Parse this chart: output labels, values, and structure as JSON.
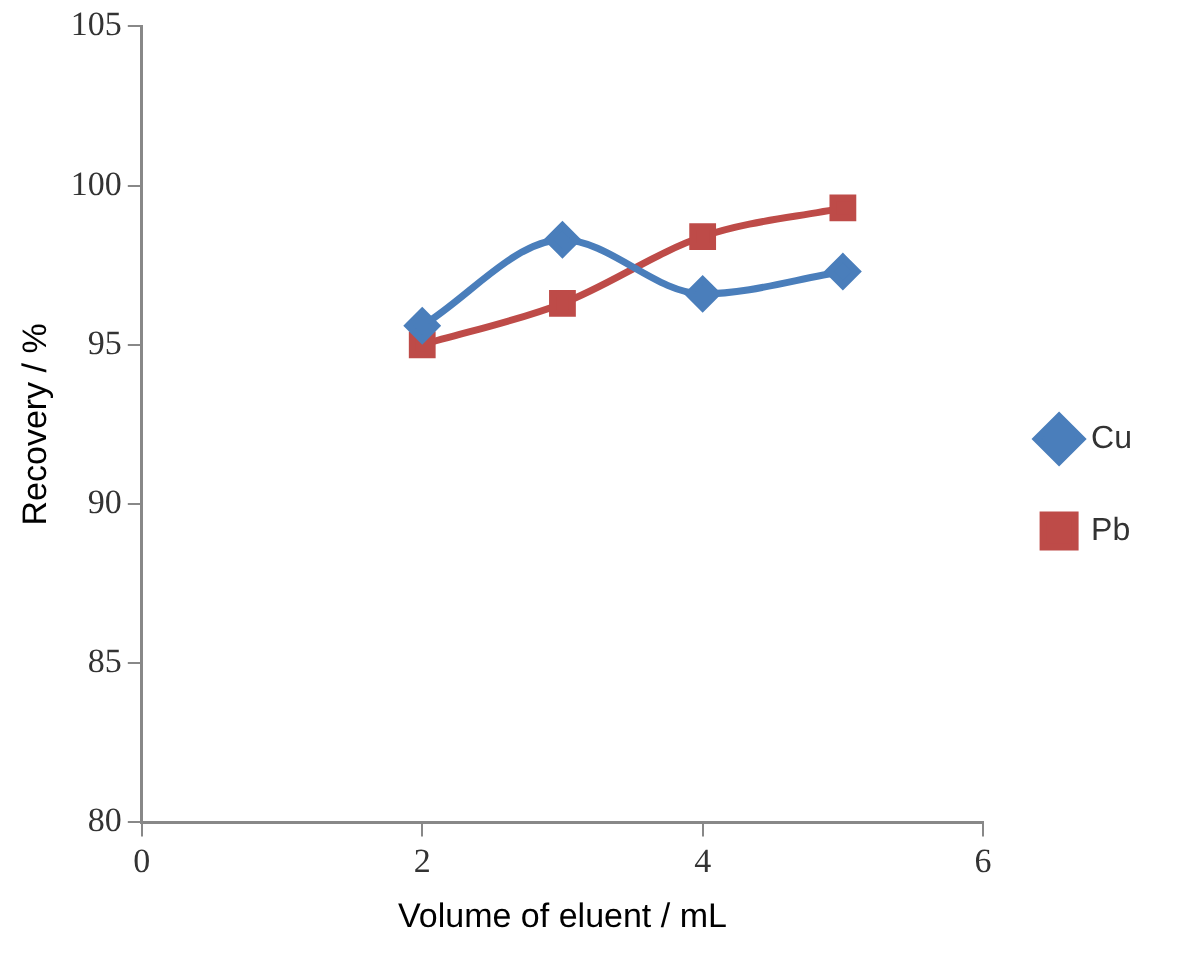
{
  "chart_data": {
    "type": "line",
    "xlabel": "Volume of eluent / mL",
    "ylabel": "Recovery / %",
    "xlim": [
      0,
      6
    ],
    "xticks": [
      0,
      2,
      4,
      6
    ],
    "ylim": [
      80,
      105
    ],
    "yticks": [
      80,
      85,
      90,
      95,
      100,
      105
    ],
    "x": [
      2,
      3,
      4,
      5
    ],
    "series": [
      {
        "name": "Cu",
        "color": "#4a7ebb",
        "marker": "diamond",
        "values": [
          95.6,
          98.3,
          96.6,
          97.3
        ]
      },
      {
        "name": "Pb",
        "color": "#be4b48",
        "marker": "square",
        "values": [
          95.0,
          96.3,
          98.4,
          99.3
        ]
      }
    ],
    "grid": false,
    "legend": "right",
    "line_style": "solid"
  }
}
